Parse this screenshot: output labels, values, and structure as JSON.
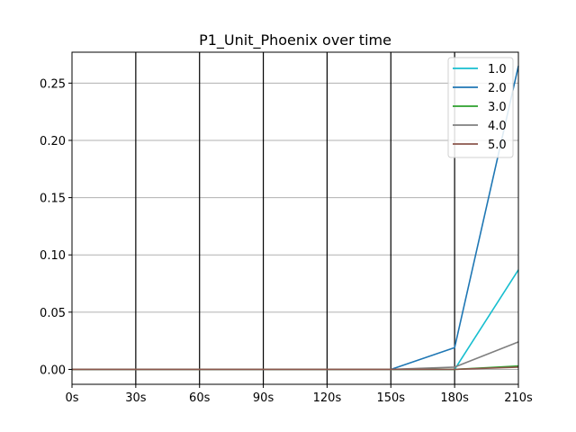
{
  "chart_data": {
    "type": "line",
    "title": "P1_Unit_Phoenix over time",
    "xlabel": "",
    "ylabel": "",
    "x": [
      "0s",
      "30s",
      "60s",
      "90s",
      "120s",
      "150s",
      "180s",
      "210s"
    ],
    "x_numeric": [
      0,
      30,
      60,
      90,
      120,
      150,
      180,
      210
    ],
    "xlim": [
      0,
      210
    ],
    "ylim": [
      -0.013,
      0.277
    ],
    "y_ticks": [
      "0.00",
      "0.05",
      "0.10",
      "0.15",
      "0.20",
      "0.25"
    ],
    "y_tick_values": [
      0.0,
      0.05,
      0.1,
      0.15,
      0.2,
      0.25
    ],
    "grid": {
      "horizontal": true,
      "horizontal_color": "#b0b0b0",
      "vertical_lines_at_ticks": true,
      "vertical_color": "#000000"
    },
    "legend_position": "top-right",
    "series": [
      {
        "name": "1.0",
        "color": "#17becf",
        "values": [
          0,
          0,
          0,
          0,
          0,
          0,
          0.0,
          0.087
        ]
      },
      {
        "name": "2.0",
        "color": "#1f77b4",
        "values": [
          0,
          0,
          0,
          0,
          0,
          0,
          0.019,
          0.265
        ]
      },
      {
        "name": "3.0",
        "color": "#2ca02c",
        "values": [
          0,
          0,
          0,
          0,
          0,
          0,
          0.0,
          0.003
        ]
      },
      {
        "name": "4.0",
        "color": "#7f7f7f",
        "values": [
          0,
          0,
          0,
          0,
          0,
          0,
          0.002,
          0.024
        ]
      },
      {
        "name": "5.0",
        "color": "#8c564b",
        "values": [
          0,
          0,
          0,
          0,
          0,
          0,
          0.0,
          0.002
        ]
      }
    ]
  }
}
